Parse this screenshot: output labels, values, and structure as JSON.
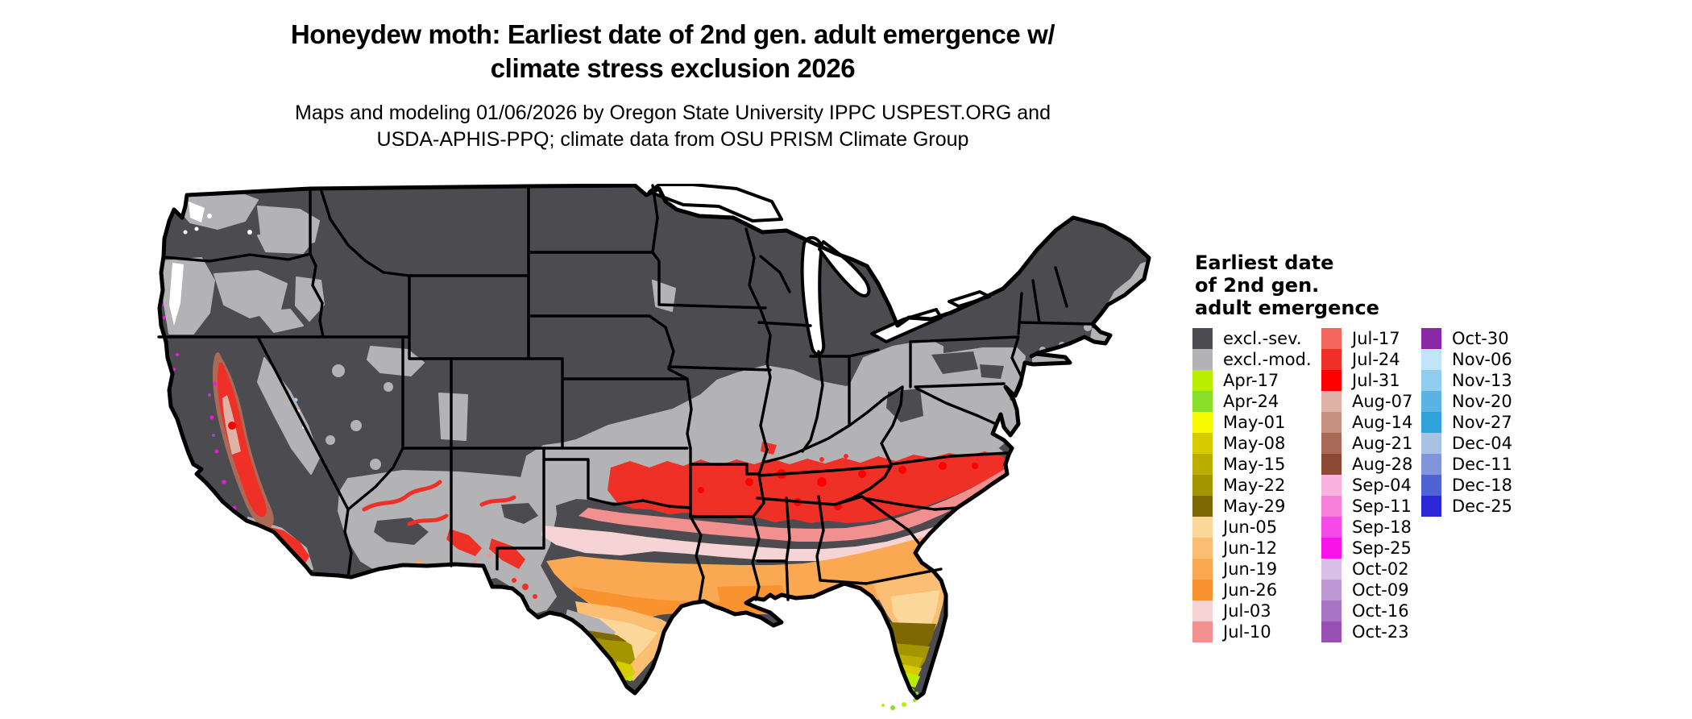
{
  "header": {
    "title_line1": "Honeydew moth: Earliest date of 2nd gen. adult emergence w/",
    "title_line2": "climate stress exclusion 2026",
    "subtitle_line1": "Maps and modeling 01/06/2026 by Oregon State University IPPC USPEST.ORG and",
    "subtitle_line2": "USDA-APHIS-PPQ; climate data from OSU PRISM Climate Group"
  },
  "legend": {
    "title_lines": [
      "Earliest date",
      "of 2nd gen.",
      "adult emergence"
    ],
    "columns": [
      [
        {
          "label": "excl.-sev.",
          "color": "#4c4c50"
        },
        {
          "label": "excl.-mod.",
          "color": "#b3b3b6"
        },
        {
          "label": "Apr-17",
          "color": "#baee00"
        },
        {
          "label": "Apr-24",
          "color": "#88df2a"
        },
        {
          "label": "May-01",
          "color": "#f8f800"
        },
        {
          "label": "May-08",
          "color": "#d8cc00"
        },
        {
          "label": "May-15",
          "color": "#bcae00"
        },
        {
          "label": "May-22",
          "color": "#a49400"
        },
        {
          "label": "May-29",
          "color": "#7e6804"
        },
        {
          "label": "Jun-05",
          "color": "#fbd79c"
        },
        {
          "label": "Jun-12",
          "color": "#fbbe72"
        },
        {
          "label": "Jun-19",
          "color": "#faa851"
        },
        {
          "label": "Jun-26",
          "color": "#f8932f"
        },
        {
          "label": "Jul-03",
          "color": "#f6d3d4"
        },
        {
          "label": "Jul-10",
          "color": "#f2908f"
        }
      ],
      [
        {
          "label": "Jul-17",
          "color": "#f4665e"
        },
        {
          "label": "Jul-24",
          "color": "#ef3028"
        },
        {
          "label": "Jul-31",
          "color": "#fe0000"
        },
        {
          "label": "Aug-07",
          "color": "#deb2a7"
        },
        {
          "label": "Aug-14",
          "color": "#c79182"
        },
        {
          "label": "Aug-21",
          "color": "#aa6a58"
        },
        {
          "label": "Aug-28",
          "color": "#8e4836"
        },
        {
          "label": "Sep-04",
          "color": "#fab2de"
        },
        {
          "label": "Sep-11",
          "color": "#f780da"
        },
        {
          "label": "Sep-18",
          "color": "#f64ae8"
        },
        {
          "label": "Sep-25",
          "color": "#fa12ea"
        },
        {
          "label": "Oct-02",
          "color": "#d7bfe7"
        },
        {
          "label": "Oct-09",
          "color": "#bf98d6"
        },
        {
          "label": "Oct-16",
          "color": "#a974c4"
        },
        {
          "label": "Oct-23",
          "color": "#9850b2"
        }
      ],
      [
        {
          "label": "Oct-30",
          "color": "#8a28a8"
        },
        {
          "label": "Nov-06",
          "color": "#c0e5f8"
        },
        {
          "label": "Nov-13",
          "color": "#90cdef"
        },
        {
          "label": "Nov-20",
          "color": "#5ab3e3"
        },
        {
          "label": "Nov-27",
          "color": "#2fa2da"
        },
        {
          "label": "Dec-04",
          "color": "#a9c2e3"
        },
        {
          "label": "Dec-11",
          "color": "#8295db"
        },
        {
          "label": "Dec-18",
          "color": "#4f63d7"
        },
        {
          "label": "Dec-25",
          "color": "#2a28d8"
        }
      ]
    ]
  },
  "map": {
    "region": "Continental United States",
    "background_color": "#ffffff",
    "border_color": "#000000",
    "excluded_severe_color": "#4c4c50",
    "excluded_moderate_color": "#b3b3b6"
  }
}
